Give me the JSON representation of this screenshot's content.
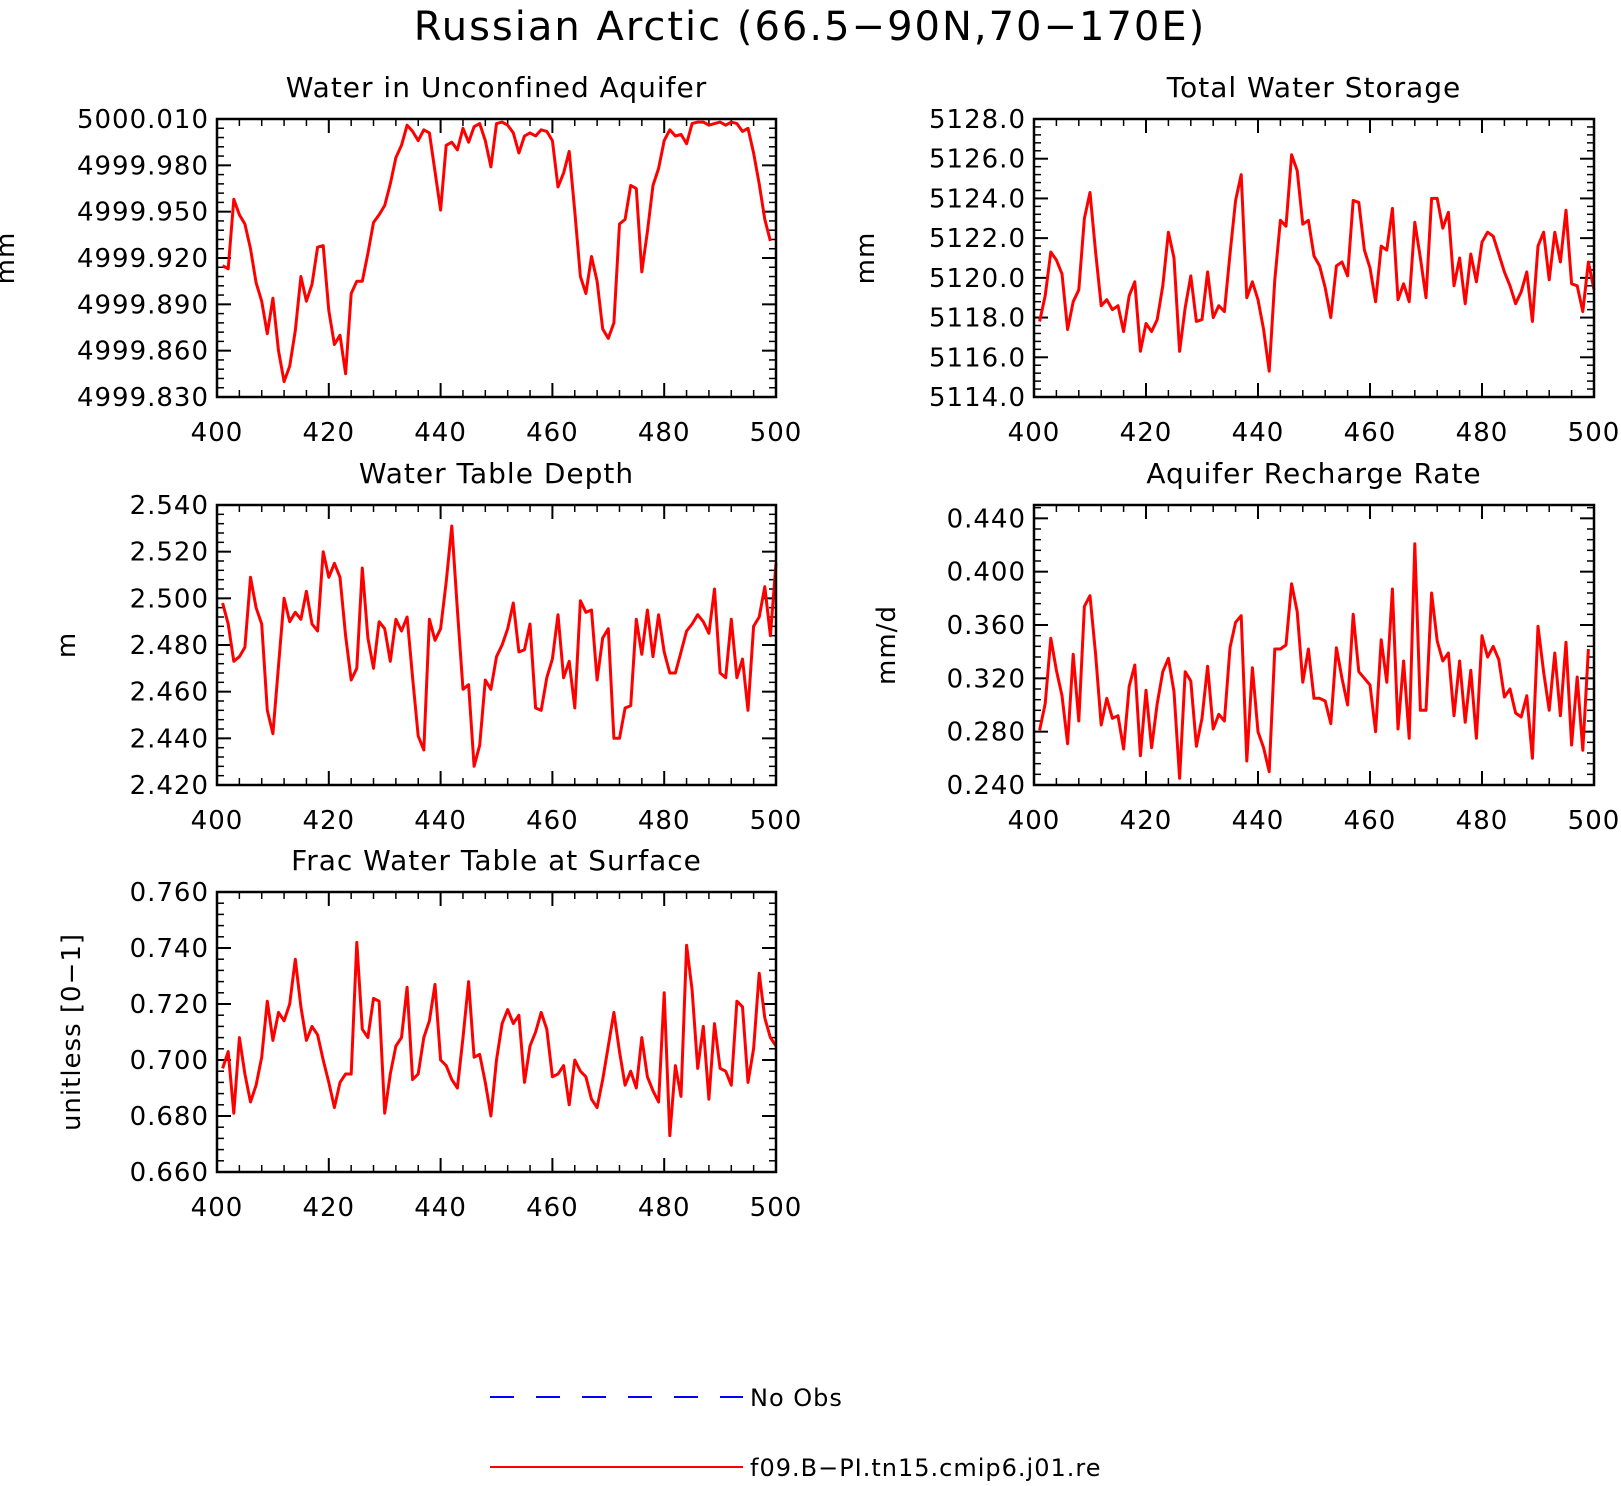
{
  "title": "Russian Arctic (66.5−90N,70−170E)",
  "colors": {
    "model": "#ff0000",
    "obs": "#0000ff",
    "axes": "#000000"
  },
  "legend": [
    {
      "label": "No Obs",
      "color": "#0000ff",
      "style": "dashed"
    },
    {
      "label": "f09.B−PI.tn15.cmip6.j01.re",
      "color": "#ff0000",
      "style": "solid"
    }
  ],
  "chart_data": [
    {
      "type": "line",
      "title": "Water in Unconfined Aquifer",
      "ylabel": "mm",
      "xlim": [
        400,
        500
      ],
      "ylim": [
        4999.83,
        5000.01
      ],
      "xticks": [
        "400",
        "420",
        "440",
        "460",
        "480",
        "500"
      ],
      "yticks": [
        "4999.830",
        "4999.860",
        "4999.890",
        "4999.920",
        "4999.950",
        "4999.980",
        "5000.010"
      ],
      "x_start": 401,
      "series": [
        {
          "color": "#ff0000",
          "values": [
            4999.915,
            4999.913,
            4999.958,
            4999.948,
            4999.942,
            4999.926,
            4999.904,
            4999.892,
            4999.871,
            4999.894,
            4999.86,
            4999.84,
            4999.85,
            4999.873,
            4999.908,
            4999.892,
            4999.903,
            4999.927,
            4999.928,
            4999.886,
            4999.864,
            4999.87,
            4999.845,
            4999.897,
            4999.905,
            4999.905,
            4999.923,
            4999.943,
            4999.948,
            4999.954,
            4999.968,
            4999.985,
            4999.993,
            5000.006,
            5000.002,
            4999.996,
            5000.003,
            5000.001,
            4999.976,
            4999.951,
            4999.993,
            4999.995,
            4999.99,
            5000.004,
            4999.995,
            5000.005,
            5000.007,
            4999.996,
            4999.979,
            5000.007,
            5000.008,
            5000.006,
            5000.001,
            4999.988,
            4999.999,
            5000.001,
            4999.999,
            5000.003,
            5000.002,
            4999.996,
            4999.966,
            4999.975,
            4999.989,
            4999.95,
            4999.908,
            4999.897,
            4999.921,
            4999.905,
            4999.874,
            4999.868,
            4999.878,
            4999.942,
            4999.945,
            4999.967,
            4999.965,
            4999.911,
            4999.937,
            4999.967,
            4999.978,
            4999.996,
            5000.003,
            4999.999,
            5000.0,
            4999.994,
            5000.007,
            5000.008,
            5000.008,
            5000.006,
            5000.007,
            5000.008,
            5000.006,
            5000.008,
            5000.007,
            5000.002,
            5000.004,
            4999.988,
            4999.968,
            4999.945,
            4999.931
          ]
        }
      ]
    },
    {
      "type": "line",
      "title": "Total Water Storage",
      "ylabel": "mm",
      "xlim": [
        400,
        500
      ],
      "ylim": [
        5114,
        5128
      ],
      "xticks": [
        "400",
        "420",
        "440",
        "460",
        "480",
        "500"
      ],
      "yticks": [
        "5114.0",
        "5116.0",
        "5118.0",
        "5120.0",
        "5122.0",
        "5124.0",
        "5126.0",
        "5128.0"
      ],
      "x_start": 401,
      "series": [
        {
          "color": "#ff0000",
          "values": [
            5117.8,
            5119.1,
            5121.3,
            5120.9,
            5120.2,
            5117.4,
            5118.8,
            5119.4,
            5123.0,
            5124.3,
            5121.3,
            5118.6,
            5118.9,
            5118.4,
            5118.6,
            5117.3,
            5119.1,
            5119.8,
            5116.3,
            5117.7,
            5117.3,
            5117.9,
            5119.6,
            5122.3,
            5121.0,
            5116.3,
            5118.5,
            5120.1,
            5117.8,
            5117.9,
            5120.3,
            5118.0,
            5118.6,
            5118.3,
            5121.2,
            5123.9,
            5125.2,
            5119.0,
            5119.8,
            5118.9,
            5117.4,
            5115.3,
            5119.9,
            5122.9,
            5122.6,
            5126.2,
            5125.4,
            5122.7,
            5122.9,
            5121.1,
            5120.6,
            5119.5,
            5118.0,
            5120.6,
            5120.8,
            5120.1,
            5123.9,
            5123.8,
            5121.4,
            5120.5,
            5118.8,
            5121.6,
            5121.4,
            5123.5,
            5118.9,
            5119.7,
            5118.8,
            5122.8,
            5121.0,
            5119.0,
            5124.0,
            5124.0,
            5122.5,
            5123.3,
            5119.6,
            5121.0,
            5118.7,
            5121.2,
            5119.8,
            5121.8,
            5122.3,
            5122.1,
            5121.2,
            5120.3,
            5119.6,
            5118.7,
            5119.3,
            5120.3,
            5117.8,
            5121.6,
            5122.3,
            5119.9,
            5122.3,
            5120.8,
            5123.4,
            5119.7,
            5119.6,
            5118.3,
            5120.8,
            5119.4
          ]
        }
      ]
    },
    {
      "type": "line",
      "title": "Water Table Depth",
      "ylabel": "m",
      "xlim": [
        400,
        500
      ],
      "ylim": [
        2.42,
        2.54
      ],
      "xticks": [
        "400",
        "420",
        "440",
        "460",
        "480",
        "500"
      ],
      "yticks": [
        "2.420",
        "2.440",
        "2.460",
        "2.480",
        "2.500",
        "2.520",
        "2.540"
      ],
      "x_start": 401,
      "series": [
        {
          "color": "#ff0000",
          "values": [
            2.498,
            2.489,
            2.473,
            2.475,
            2.479,
            2.509,
            2.496,
            2.489,
            2.452,
            2.442,
            2.471,
            2.5,
            2.49,
            2.494,
            2.491,
            2.503,
            2.489,
            2.486,
            2.52,
            2.509,
            2.515,
            2.509,
            2.484,
            2.465,
            2.47,
            2.513,
            2.483,
            2.47,
            2.49,
            2.487,
            2.473,
            2.491,
            2.486,
            2.492,
            2.466,
            2.441,
            2.435,
            2.491,
            2.482,
            2.487,
            2.507,
            2.531,
            2.495,
            2.461,
            2.463,
            2.428,
            2.437,
            2.465,
            2.461,
            2.475,
            2.48,
            2.487,
            2.498,
            2.477,
            2.478,
            2.489,
            2.453,
            2.452,
            2.466,
            2.474,
            2.493,
            2.466,
            2.473,
            2.453,
            2.499,
            2.494,
            2.495,
            2.465,
            2.483,
            2.487,
            2.44,
            2.44,
            2.453,
            2.454,
            2.491,
            2.476,
            2.495,
            2.475,
            2.493,
            2.477,
            2.468,
            2.468,
            2.477,
            2.486,
            2.489,
            2.493,
            2.49,
            2.485,
            2.504,
            2.468,
            2.466,
            2.491,
            2.466,
            2.474,
            2.452,
            2.488,
            2.492,
            2.505,
            2.484,
            2.515
          ]
        }
      ]
    },
    {
      "type": "line",
      "title": "Aquifer Recharge Rate",
      "ylabel": "mm/d",
      "xlim": [
        400,
        500
      ],
      "ylim": [
        0.24,
        0.45
      ],
      "xticks": [
        "400",
        "420",
        "440",
        "460",
        "480",
        "500"
      ],
      "yticks": [
        "0.240",
        "0.280",
        "0.320",
        "0.360",
        "0.400",
        "0.440"
      ],
      "x_start": 401,
      "series": [
        {
          "color": "#ff0000",
          "values": [
            0.281,
            0.301,
            0.35,
            0.326,
            0.307,
            0.271,
            0.338,
            0.288,
            0.374,
            0.382,
            0.338,
            0.285,
            0.305,
            0.29,
            0.292,
            0.267,
            0.314,
            0.33,
            0.262,
            0.311,
            0.268,
            0.301,
            0.325,
            0.335,
            0.31,
            0.245,
            0.325,
            0.318,
            0.269,
            0.29,
            0.329,
            0.282,
            0.293,
            0.288,
            0.343,
            0.362,
            0.367,
            0.258,
            0.328,
            0.28,
            0.268,
            0.25,
            0.342,
            0.342,
            0.345,
            0.391,
            0.37,
            0.317,
            0.342,
            0.305,
            0.305,
            0.303,
            0.286,
            0.343,
            0.32,
            0.3,
            0.368,
            0.325,
            0.32,
            0.315,
            0.28,
            0.349,
            0.317,
            0.387,
            0.282,
            0.333,
            0.275,
            0.421,
            0.296,
            0.296,
            0.384,
            0.348,
            0.333,
            0.339,
            0.292,
            0.333,
            0.287,
            0.326,
            0.275,
            0.352,
            0.336,
            0.344,
            0.334,
            0.306,
            0.312,
            0.294,
            0.291,
            0.307,
            0.26,
            0.359,
            0.325,
            0.296,
            0.339,
            0.292,
            0.347,
            0.27,
            0.321,
            0.266,
            0.342
          ]
        }
      ]
    },
    {
      "type": "line",
      "title": "Frac Water Table at Surface",
      "ylabel": "unitless [0−1]",
      "xlim": [
        400,
        500
      ],
      "ylim": [
        0.66,
        0.76
      ],
      "xticks": [
        "400",
        "420",
        "440",
        "460",
        "480",
        "500"
      ],
      "yticks": [
        "0.660",
        "0.680",
        "0.700",
        "0.720",
        "0.740",
        "0.760"
      ],
      "x_start": 401,
      "series": [
        {
          "color": "#ff0000",
          "values": [
            0.697,
            0.703,
            0.681,
            0.708,
            0.695,
            0.685,
            0.691,
            0.701,
            0.721,
            0.707,
            0.717,
            0.714,
            0.72,
            0.736,
            0.719,
            0.707,
            0.712,
            0.709,
            0.7,
            0.692,
            0.683,
            0.692,
            0.695,
            0.695,
            0.742,
            0.711,
            0.708,
            0.722,
            0.721,
            0.681,
            0.695,
            0.705,
            0.708,
            0.726,
            0.693,
            0.695,
            0.708,
            0.714,
            0.727,
            0.7,
            0.698,
            0.693,
            0.69,
            0.708,
            0.728,
            0.701,
            0.702,
            0.692,
            0.68,
            0.7,
            0.713,
            0.718,
            0.713,
            0.716,
            0.692,
            0.705,
            0.71,
            0.717,
            0.711,
            0.694,
            0.695,
            0.698,
            0.684,
            0.7,
            0.696,
            0.694,
            0.686,
            0.683,
            0.693,
            0.705,
            0.717,
            0.703,
            0.691,
            0.696,
            0.69,
            0.708,
            0.694,
            0.689,
            0.685,
            0.724,
            0.673,
            0.698,
            0.687,
            0.741,
            0.725,
            0.697,
            0.712,
            0.686,
            0.713,
            0.697,
            0.696,
            0.691,
            0.721,
            0.719,
            0.692,
            0.704,
            0.731,
            0.715,
            0.708,
            0.705
          ]
        }
      ]
    }
  ]
}
